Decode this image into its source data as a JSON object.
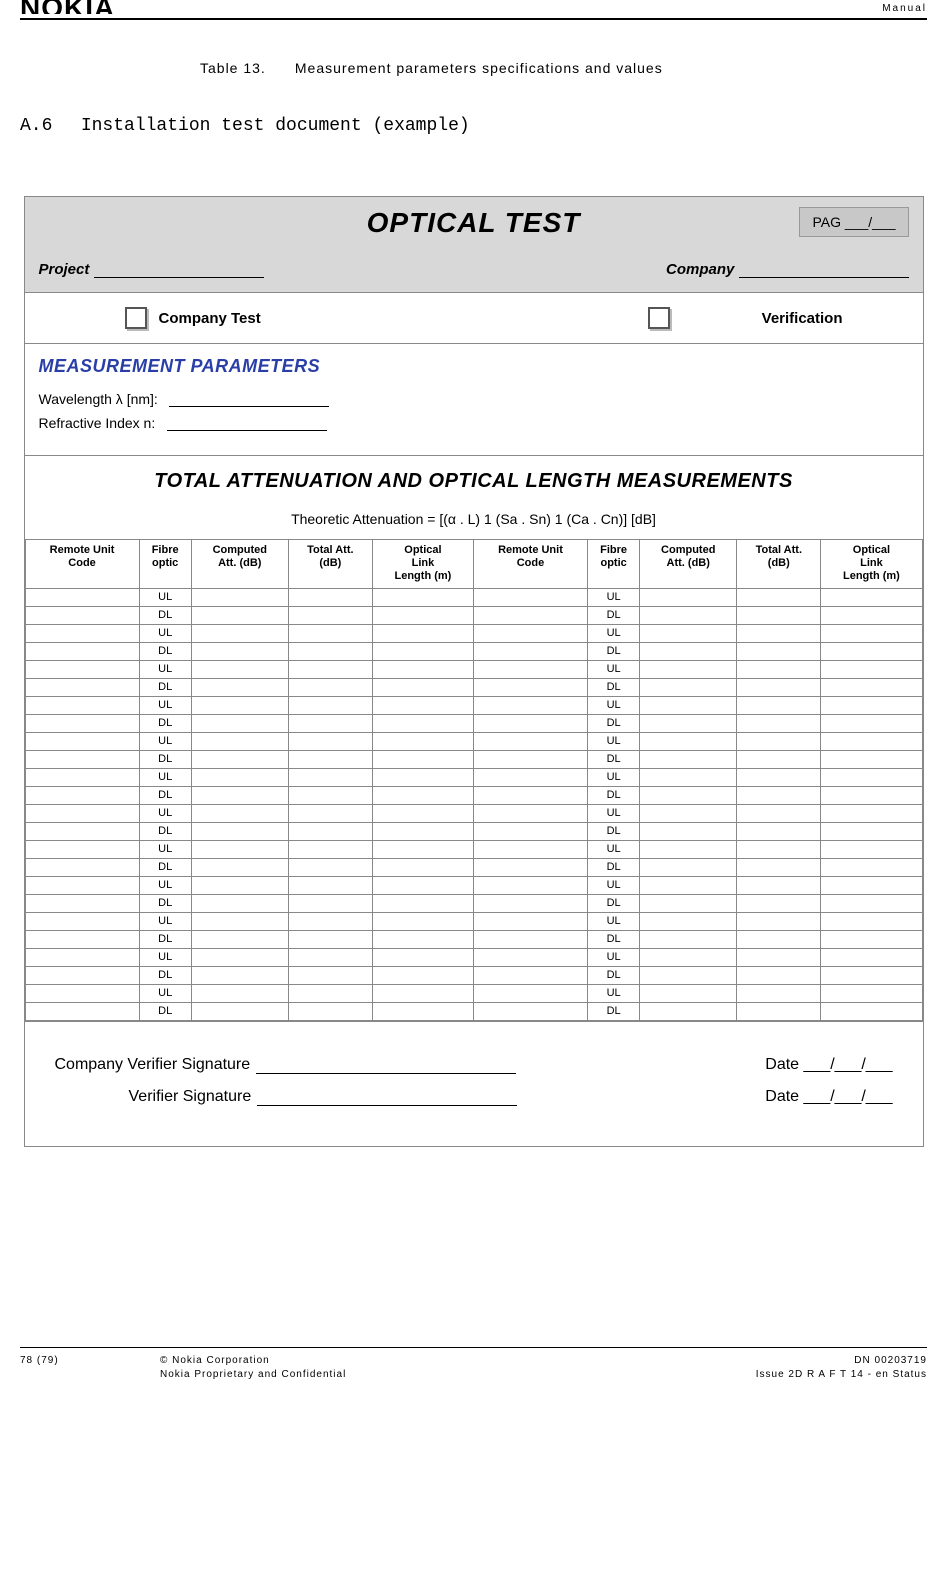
{
  "header": {
    "logo": "NOKIA",
    "manual": "Manual"
  },
  "caption": {
    "num": "Table 13.",
    "text": "Measurement parameters specifications and values"
  },
  "section": {
    "num": "A.6",
    "title": "Installation test document (example)"
  },
  "form": {
    "title": "OPTICAL TEST",
    "pag": "PAG ___/___",
    "project_label": "Project",
    "company_label": "Company",
    "company_test": "Company Test",
    "verification": "Verification",
    "meas_title": "MEASUREMENT PARAMETERS",
    "wavelength": "Wavelength λ [nm]:",
    "refractive": "Refractive Index n:",
    "atten_title": "TOTAL ATTENUATION AND OPTICAL LENGTH MEASUREMENTS",
    "atten_formula": "Theoretic Attenuation = [(α . L) 1 (Sa . Sn) 1 (Ca . Cn)]  [dB]",
    "columns": [
      "Remote Unit Code",
      "Fibre optic",
      "Computed Att. (dB)",
      "Total Att. (dB)",
      "Optical Link Length (m)",
      "Remote Unit Code",
      "Fibre optic",
      "Computed Att. (dB)",
      "Total Att. (dB)",
      "Optical Link Length (m)"
    ],
    "fibre_values": [
      "UL",
      "DL"
    ],
    "row_groups": 12,
    "sig1": "Company Verifier Signature",
    "sig2": "Verifier Signature",
    "date": "Date ___/___/___"
  },
  "footer": {
    "page": "78 (79)",
    "copyright": "© Nokia Corporation",
    "confidential": "Nokia Proprietary and Confidential",
    "dn": "DN 00203719",
    "issue": "Issue 2D   R A F T 14 - en  Status"
  }
}
